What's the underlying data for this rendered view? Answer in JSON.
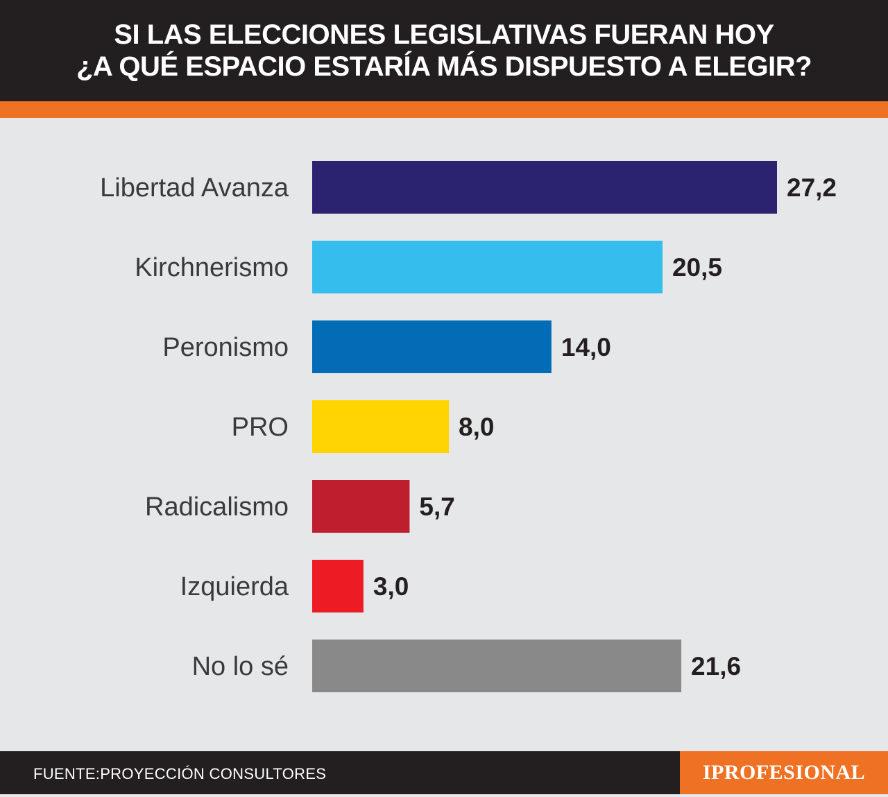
{
  "header": {
    "title_line1": "SI LAS ELECCIONES LEGISLATIVAS FUERAN HOY",
    "title_line2": "¿A QUÉ ESPACIO ESTARÍA MÁS DISPUESTO A ELEGIR?"
  },
  "colors": {
    "header_bg": "#231f20",
    "accent": "#ef7123",
    "background": "#e6e7e8"
  },
  "chart_data": {
    "type": "bar",
    "orientation": "horizontal",
    "categories": [
      "Libertad Avanza",
      "Kirchnerismo",
      "Peronismo",
      "PRO",
      "Radicalismo",
      "Izquierda",
      "No lo sé"
    ],
    "values": [
      27.2,
      20.5,
      14.0,
      8.0,
      5.7,
      3.0,
      21.6
    ],
    "value_labels": [
      "27,2",
      "20,5",
      "14,0",
      "8,0",
      "5,7",
      "3,0",
      "21,6"
    ],
    "bar_colors": [
      "#2b2370",
      "#35bdee",
      "#026cb6",
      "#ffd400",
      "#be1e2d",
      "#ed1c24",
      "#898989"
    ],
    "xlim": [
      0,
      27.2
    ],
    "grid": false,
    "legend": "none"
  },
  "footer": {
    "source": "FUENTE:PROYECCIÓN CONSULTORES",
    "logo": "IPROFESIONAL"
  }
}
